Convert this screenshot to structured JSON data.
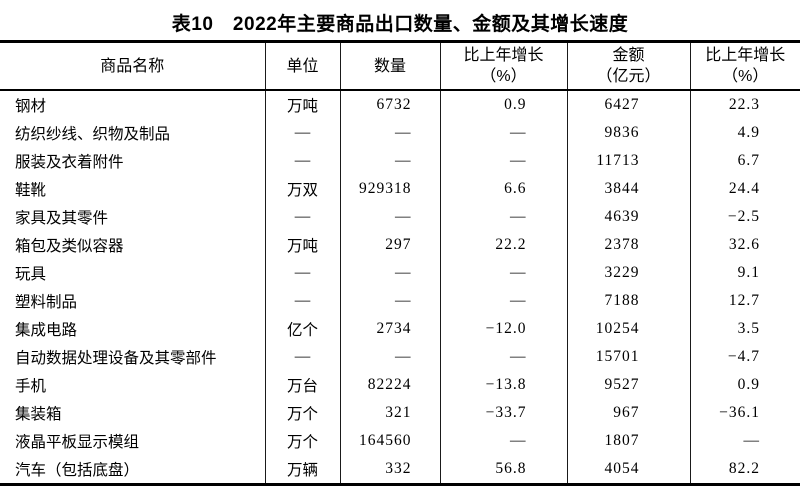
{
  "title": "表10　2022年主要商品出口数量、金额及其增长速度",
  "table": {
    "columns": [
      {
        "label": "商品名称",
        "sub": ""
      },
      {
        "label": "单位",
        "sub": ""
      },
      {
        "label": "数量",
        "sub": ""
      },
      {
        "label": "比上年增长",
        "sub": "（%）"
      },
      {
        "label": "金额",
        "sub": "（亿元）"
      },
      {
        "label": "比上年增长",
        "sub": "（%）"
      }
    ],
    "rows": [
      {
        "name": "钢材",
        "unit": "万吨",
        "quantity": "6732",
        "quantity_growth": "0.9",
        "amount": "6427",
        "amount_growth": "22.3"
      },
      {
        "name": "纺织纱线、织物及制品",
        "unit": "—",
        "quantity": "—",
        "quantity_growth": "—",
        "amount": "9836",
        "amount_growth": "4.9"
      },
      {
        "name": "服装及衣着附件",
        "unit": "—",
        "quantity": "—",
        "quantity_growth": "—",
        "amount": "11713",
        "amount_growth": "6.7"
      },
      {
        "name": "鞋靴",
        "unit": "万双",
        "quantity": "929318",
        "quantity_growth": "6.6",
        "amount": "3844",
        "amount_growth": "24.4"
      },
      {
        "name": "家具及其零件",
        "unit": "—",
        "quantity": "—",
        "quantity_growth": "—",
        "amount": "4639",
        "amount_growth": "−2.5"
      },
      {
        "name": "箱包及类似容器",
        "unit": "万吨",
        "quantity": "297",
        "quantity_growth": "22.2",
        "amount": "2378",
        "amount_growth": "32.6"
      },
      {
        "name": "玩具",
        "unit": "—",
        "quantity": "—",
        "quantity_growth": "—",
        "amount": "3229",
        "amount_growth": "9.1"
      },
      {
        "name": "塑料制品",
        "unit": "—",
        "quantity": "—",
        "quantity_growth": "—",
        "amount": "7188",
        "amount_growth": "12.7"
      },
      {
        "name": "集成电路",
        "unit": "亿个",
        "quantity": "2734",
        "quantity_growth": "−12.0",
        "amount": "10254",
        "amount_growth": "3.5"
      },
      {
        "name": "自动数据处理设备及其零部件",
        "unit": "—",
        "quantity": "—",
        "quantity_growth": "—",
        "amount": "15701",
        "amount_growth": "−4.7"
      },
      {
        "name": "手机",
        "unit": "万台",
        "quantity": "82224",
        "quantity_growth": "−13.8",
        "amount": "9527",
        "amount_growth": "0.9"
      },
      {
        "name": "集装箱",
        "unit": "万个",
        "quantity": "321",
        "quantity_growth": "−33.7",
        "amount": "967",
        "amount_growth": "−36.1"
      },
      {
        "name": "液晶平板显示模组",
        "unit": "万个",
        "quantity": "164560",
        "quantity_growth": "—",
        "amount": "1807",
        "amount_growth": "—"
      },
      {
        "name": "汽车（包括底盘）",
        "unit": "万辆",
        "quantity": "332",
        "quantity_growth": "56.8",
        "amount": "4054",
        "amount_growth": "82.2"
      }
    ]
  }
}
